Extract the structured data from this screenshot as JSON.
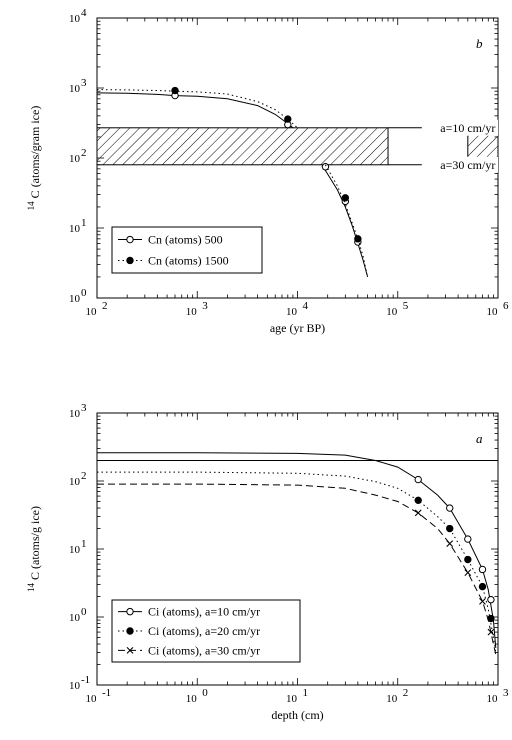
{
  "chart_data": [
    {
      "type": "line",
      "panel_label": "b",
      "xlabel": "age (yr BP)",
      "ylabel_main": "C (atoms/gram ice)",
      "ylabel_sup": "14",
      "x_scale": "log",
      "y_scale": "log",
      "xlim": [
        100,
        1000000
      ],
      "ylim": [
        1,
        10000
      ],
      "x_ticks": [
        {
          "base": "10",
          "exp": "2"
        },
        {
          "base": "10",
          "exp": "3"
        },
        {
          "base": "10",
          "exp": "4"
        },
        {
          "base": "10",
          "exp": "5"
        },
        {
          "base": "10",
          "exp": "6"
        }
      ],
      "y_ticks": [
        {
          "base": "10",
          "exp": "0"
        },
        {
          "base": "10",
          "exp": "1"
        },
        {
          "base": "10",
          "exp": "2"
        },
        {
          "base": "10",
          "exp": "3"
        },
        {
          "base": "10",
          "exp": "4"
        }
      ],
      "band": {
        "x_from": 100,
        "x_to": 1000000,
        "y_from": 80,
        "y_to": 270,
        "gap": [
          80000,
          500000
        ]
      },
      "annotations": [
        {
          "text": "a=10 cm/yr",
          "x": 500000,
          "y": 270
        },
        {
          "text": "a=30 cm/yr",
          "x": 500000,
          "y": 80
        }
      ],
      "legend": {
        "position": "lower-left"
      },
      "series": [
        {
          "name": "Cn (atoms) 500",
          "line": "solid",
          "marker": "open-circle",
          "curve": [
            [
              100,
              850
            ],
            [
              200,
              840
            ],
            [
              400,
              810
            ],
            [
              600,
              780
            ],
            [
              1000,
              760
            ],
            [
              2000,
              700
            ],
            [
              4000,
              560
            ],
            [
              6000,
              420
            ],
            [
              8000,
              310
            ],
            [
              9000,
              270
            ]
          ],
          "curve_lower": [
            [
              18000,
              75
            ],
            [
              25000,
              35
            ],
            [
              30000,
              20
            ],
            [
              35000,
              11
            ],
            [
              40000,
              6
            ],
            [
              45000,
              3.5
            ],
            [
              50000,
              2
            ]
          ],
          "markers": [
            [
              600,
              780
            ],
            [
              8000,
              300
            ],
            [
              19000,
              75
            ],
            [
              30000,
              24
            ],
            [
              40000,
              6.3
            ]
          ]
        },
        {
          "name": "Cn (atoms) 1500",
          "line": "dotted",
          "marker": "filled-circle",
          "curve": [
            [
              100,
              950
            ],
            [
              200,
              940
            ],
            [
              400,
              920
            ],
            [
              600,
              900
            ],
            [
              1000,
              880
            ],
            [
              2000,
              820
            ],
            [
              4000,
              640
            ],
            [
              6000,
              490
            ],
            [
              8000,
              360
            ],
            [
              10000,
              270
            ]
          ],
          "curve_lower": [
            [
              19000,
              80
            ],
            [
              25000,
              40
            ],
            [
              30000,
              22
            ],
            [
              35000,
              12
            ],
            [
              40000,
              7
            ],
            [
              45000,
              4
            ],
            [
              50000,
              2
            ]
          ],
          "markers": [
            [
              600,
              920
            ],
            [
              8000,
              360
            ],
            [
              30000,
              27
            ],
            [
              40000,
              7
            ]
          ]
        }
      ]
    },
    {
      "type": "line",
      "panel_label": "a",
      "xlabel": "depth (cm)",
      "ylabel_main": "C (atoms/g ice)",
      "ylabel_sup": "14",
      "x_scale": "log",
      "y_scale": "log",
      "xlim": [
        0.1,
        1000
      ],
      "ylim": [
        0.1,
        1000
      ],
      "x_ticks": [
        {
          "base": "10",
          "exp": "-1"
        },
        {
          "base": "10",
          "exp": "0"
        },
        {
          "base": "10",
          "exp": "1"
        },
        {
          "base": "10",
          "exp": "2"
        },
        {
          "base": "10",
          "exp": "3"
        }
      ],
      "y_ticks": [
        {
          "base": "10",
          "exp": "-1"
        },
        {
          "base": "10",
          "exp": "0"
        },
        {
          "base": "10",
          "exp": "1"
        },
        {
          "base": "10",
          "exp": "2"
        },
        {
          "base": "10",
          "exp": "3"
        }
      ],
      "hline": 200,
      "legend": {
        "position": "lower-left"
      },
      "series": [
        {
          "name": "Ci (atoms), a=10 cm/yr",
          "line": "solid",
          "marker": "open-circle",
          "curve": [
            [
              0.1,
              260
            ],
            [
              1,
              260
            ],
            [
              10,
              255
            ],
            [
              30,
              240
            ],
            [
              60,
              200
            ],
            [
              100,
              160
            ],
            [
              160,
              105
            ],
            [
              250,
              62
            ],
            [
              330,
              40
            ],
            [
              500,
              14
            ],
            [
              700,
              5
            ],
            [
              800,
              2.5
            ],
            [
              900,
              0.9
            ],
            [
              950,
              0.35
            ]
          ],
          "markers": [
            [
              160,
              105
            ],
            [
              330,
              40
            ],
            [
              500,
              14
            ],
            [
              700,
              5
            ],
            [
              850,
              1.8
            ]
          ]
        },
        {
          "name": "Ci (atoms), a=20 cm/yr",
          "line": "dotted",
          "marker": "filled-circle",
          "curve": [
            [
              0.1,
              135
            ],
            [
              1,
              135
            ],
            [
              10,
              130
            ],
            [
              30,
              118
            ],
            [
              60,
              98
            ],
            [
              100,
              78
            ],
            [
              160,
              52
            ],
            [
              250,
              30
            ],
            [
              330,
              20
            ],
            [
              500,
              7
            ],
            [
              700,
              2.8
            ],
            [
              800,
              1.3
            ],
            [
              900,
              0.5
            ],
            [
              950,
              0.3
            ]
          ],
          "markers": [
            [
              160,
              52
            ],
            [
              330,
              20
            ],
            [
              500,
              7
            ],
            [
              700,
              2.8
            ],
            [
              850,
              0.95
            ]
          ]
        },
        {
          "name": "Ci (atoms), a=30 cm/yr",
          "line": "dashed",
          "marker": "cross",
          "curve": [
            [
              0.1,
              90
            ],
            [
              1,
              90
            ],
            [
              10,
              87
            ],
            [
              30,
              78
            ],
            [
              60,
              62
            ],
            [
              100,
              50
            ],
            [
              160,
              34
            ],
            [
              250,
              20
            ],
            [
              330,
              12
            ],
            [
              500,
              4.5
            ],
            [
              700,
              1.7
            ],
            [
              800,
              0.9
            ],
            [
              900,
              0.4
            ],
            [
              950,
              0.28
            ]
          ],
          "markers": [
            [
              160,
              34
            ],
            [
              330,
              12
            ],
            [
              500,
              4.5
            ],
            [
              700,
              1.7
            ],
            [
              850,
              0.6
            ]
          ]
        }
      ]
    }
  ]
}
